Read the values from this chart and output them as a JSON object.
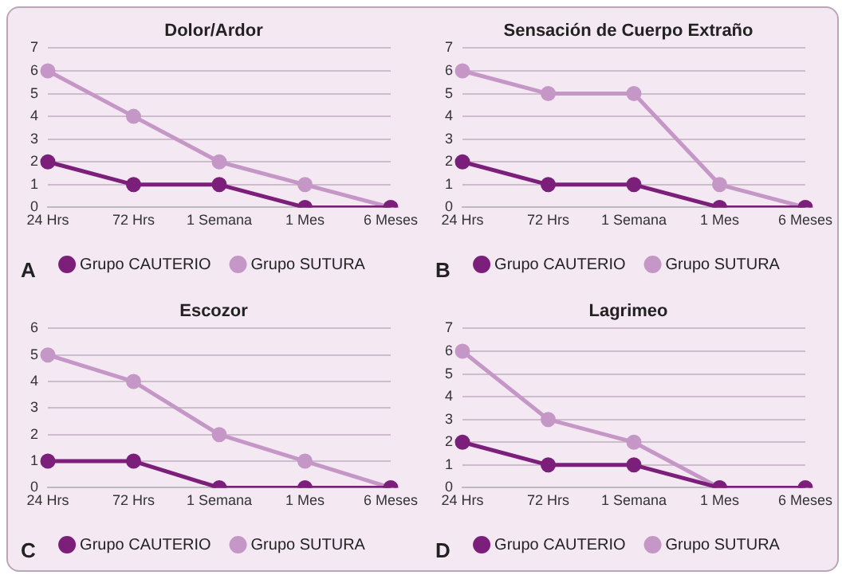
{
  "chart_data": [
    {
      "type": "line",
      "title": "Dolor/Ardor",
      "categories": [
        "24 Hrs",
        "72 Hrs",
        "1 Semana",
        "1 Mes",
        "6 Meses"
      ],
      "ylim": [
        0,
        7
      ],
      "yticks": [
        0,
        1,
        2,
        3,
        4,
        5,
        6,
        7
      ],
      "grid": "y",
      "legend": "bottom",
      "marker": "circle",
      "annotations": [
        "A"
      ],
      "series": [
        {
          "name": "Grupo CAUTERIO",
          "color": "#7b1f7a",
          "values": [
            2,
            1,
            1,
            0,
            0
          ]
        },
        {
          "name": "Grupo SUTURA",
          "color": "#c597c6",
          "values": [
            6,
            4,
            2,
            1,
            0
          ]
        }
      ]
    },
    {
      "type": "line",
      "title": "Sensación de Cuerpo Extraño",
      "categories": [
        "24 Hrs",
        "72 Hrs",
        "1 Semana",
        "1 Mes",
        "6 Meses"
      ],
      "ylim": [
        0,
        7
      ],
      "yticks": [
        0,
        1,
        2,
        3,
        4,
        5,
        6,
        7
      ],
      "grid": "y",
      "legend": "bottom",
      "marker": "circle",
      "annotations": [
        "B"
      ],
      "series": [
        {
          "name": "Grupo CAUTERIO",
          "color": "#7b1f7a",
          "values": [
            2,
            1,
            1,
            0,
            0
          ]
        },
        {
          "name": "Grupo SUTURA",
          "color": "#c597c6",
          "values": [
            6,
            5,
            5,
            1,
            0
          ]
        }
      ]
    },
    {
      "type": "line",
      "title": "Escozor",
      "categories": [
        "24 Hrs",
        "72 Hrs",
        "1 Semana",
        "1 Mes",
        "6 Meses"
      ],
      "ylim": [
        0,
        6
      ],
      "yticks": [
        0,
        1,
        2,
        3,
        4,
        5,
        6
      ],
      "grid": "y",
      "legend": "bottom",
      "marker": "circle",
      "annotations": [
        "C"
      ],
      "series": [
        {
          "name": "Grupo CAUTERIO",
          "color": "#7b1f7a",
          "values": [
            1,
            1,
            0,
            0,
            0
          ]
        },
        {
          "name": "Grupo SUTURA",
          "color": "#c597c6",
          "values": [
            5,
            4,
            2,
            1,
            0
          ]
        }
      ]
    },
    {
      "type": "line",
      "title": "Lagrimeo",
      "categories": [
        "24 Hrs",
        "72 Hrs",
        "1 Semana",
        "1 Mes",
        "6 Meses"
      ],
      "ylim": [
        0,
        7
      ],
      "yticks": [
        0,
        1,
        2,
        3,
        4,
        5,
        6,
        7
      ],
      "grid": "y",
      "legend": "bottom",
      "marker": "circle",
      "annotations": [
        "D"
      ],
      "series": [
        {
          "name": "Grupo CAUTERIO",
          "color": "#7b1f7a",
          "values": [
            2,
            1,
            1,
            0,
            0
          ]
        },
        {
          "name": "Grupo SUTURA",
          "color": "#c597c6",
          "values": [
            6,
            3,
            2,
            0,
            0
          ]
        }
      ]
    }
  ]
}
